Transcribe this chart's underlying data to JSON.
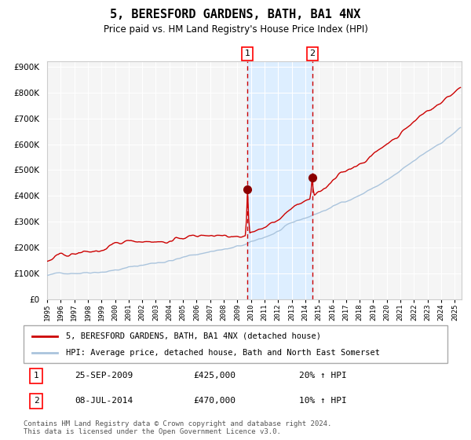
{
  "title": "5, BERESFORD GARDENS, BATH, BA1 4NX",
  "subtitle": "Price paid vs. HM Land Registry's House Price Index (HPI)",
  "xlabel": "",
  "ylabel": "",
  "ylim": [
    0,
    920000
  ],
  "xlim_start": 1995.0,
  "xlim_end": 2025.5,
  "hpi_color": "#aac4dd",
  "price_color": "#cc0000",
  "purchase1_date": 2009.73,
  "purchase1_price": 425000,
  "purchase2_date": 2014.52,
  "purchase2_price": 470000,
  "shade_color": "#ddeeff",
  "dashed_color": "#cc0000",
  "yticks": [
    0,
    100000,
    200000,
    300000,
    400000,
    500000,
    600000,
    700000,
    800000,
    900000
  ],
  "ytick_labels": [
    "£0",
    "£100K",
    "£200K",
    "£300K",
    "£400K",
    "£500K",
    "£600K",
    "£700K",
    "£800K",
    "£900K"
  ],
  "legend1": "5, BERESFORD GARDENS, BATH, BA1 4NX (detached house)",
  "legend2": "HPI: Average price, detached house, Bath and North East Somerset",
  "ann1_label": "1",
  "ann1_date_str": "25-SEP-2009",
  "ann1_price_str": "£425,000",
  "ann1_hpi_str": "20% ↑ HPI",
  "ann2_label": "2",
  "ann2_date_str": "08-JUL-2014",
  "ann2_price_str": "£470,000",
  "ann2_hpi_str": "10% ↑ HPI",
  "footer": "Contains HM Land Registry data © Crown copyright and database right 2024.\nThis data is licensed under the Open Government Licence v3.0.",
  "bg_color": "#ffffff",
  "plot_bg_color": "#f5f5f5",
  "grid_color": "#ffffff"
}
